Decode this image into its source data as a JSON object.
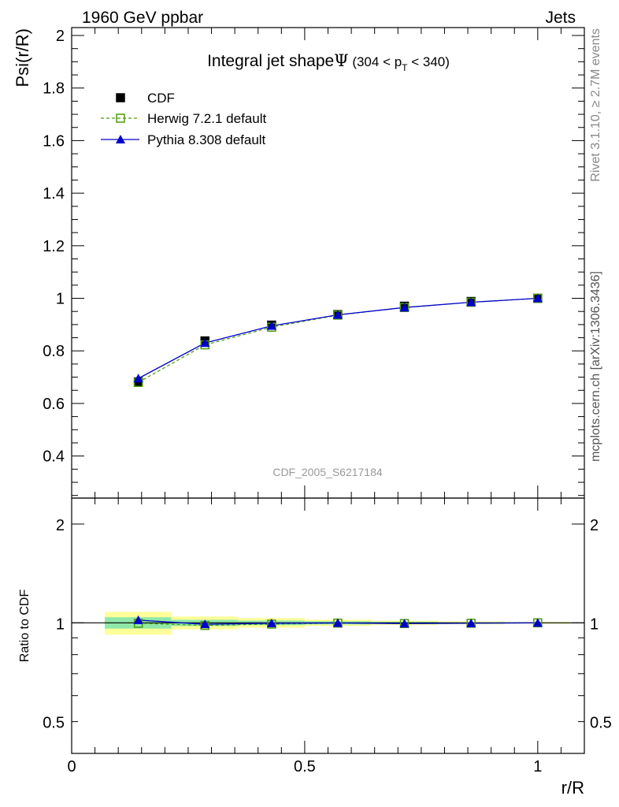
{
  "header": {
    "left": "1960 GeV ppbar",
    "right": "Jets"
  },
  "side_labels": {
    "rivet": "Rivet 3.1.10, ≥ 2.7M events",
    "mcplots": "mcplots.cern.ch [arXiv:1306.3436]"
  },
  "analysis_id": "CDF_2005_S6217184",
  "chart_data": [
    {
      "type": "line",
      "title": "Integral jet shapeΨ (304 < p_T < 340)",
      "ylabel": "Psi(r/R)",
      "xlabel": "r/R",
      "xlim": [
        0,
        1.1
      ],
      "ylim": [
        0.24,
        2.03
      ],
      "yticks": [
        "0.4",
        "0.6",
        "0.8",
        "1",
        "1.2",
        "1.4",
        "1.6",
        "1.8",
        "2"
      ],
      "legend": [
        "CDF",
        "Herwig 7.2.1 default",
        "Pythia 8.308 default"
      ],
      "legend_position": "top-left",
      "x": [
        0.143,
        0.286,
        0.429,
        0.571,
        0.714,
        0.857,
        1.0
      ],
      "series": [
        {
          "name": "CDF",
          "style": "markers",
          "color": "#000000",
          "values": [
            0.682,
            0.838,
            0.898,
            0.938,
            0.97,
            0.988,
            1.0
          ]
        },
        {
          "name": "Herwig 7.2.1 default",
          "style": "dashed-open-square",
          "color": "#4a9a0c",
          "values": [
            0.68,
            0.823,
            0.89,
            0.936,
            0.965,
            0.985,
            1.0
          ]
        },
        {
          "name": "Pythia 8.308 default",
          "style": "solid-triangle",
          "color": "#0000cc",
          "values": [
            0.695,
            0.83,
            0.895,
            0.937,
            0.965,
            0.985,
            1.0
          ]
        }
      ]
    },
    {
      "type": "line",
      "ylabel": "Ratio to CDF",
      "xlabel": "r/R",
      "xlim": [
        0,
        1.1
      ],
      "ylim": [
        0.4,
        2.4
      ],
      "yscale": "log",
      "yticks": [
        "0.5",
        "1",
        "2"
      ],
      "xticks": [
        "0",
        "0.5",
        "1"
      ],
      "x": [
        0.143,
        0.286,
        0.429,
        0.571,
        0.714,
        0.857,
        1.0
      ],
      "error_band": {
        "x_edges": [
          0.071,
          0.214,
          0.357,
          0.5,
          0.643,
          0.786,
          0.929,
          1.071
        ],
        "stat_halfwidth": [
          0.04,
          0.022,
          0.016,
          0.011,
          0.008,
          0.005,
          0.003
        ],
        "total_halfwidth": [
          0.08,
          0.045,
          0.034,
          0.022,
          0.015,
          0.01,
          0.006
        ],
        "colors": {
          "stat": "#90e8a8",
          "total": "#ffff99"
        }
      },
      "series": [
        {
          "name": "Herwig 7.2.1 default",
          "color": "#4a9a0c",
          "values": [
            0.997,
            0.982,
            0.991,
            0.998,
            0.995,
            0.997,
            1.0
          ]
        },
        {
          "name": "Pythia 8.308 default",
          "color": "#0000cc",
          "values": [
            1.019,
            0.99,
            0.997,
            0.999,
            0.995,
            0.997,
            1.0
          ]
        }
      ]
    }
  ]
}
